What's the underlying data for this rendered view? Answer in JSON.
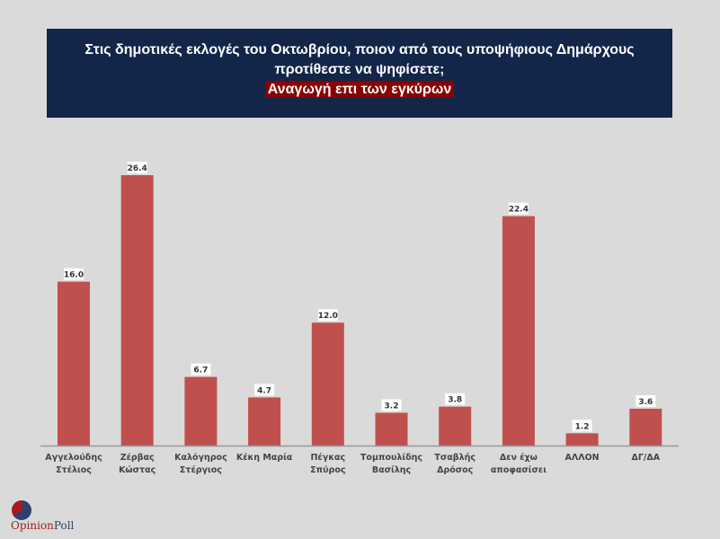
{
  "chart_data": {
    "type": "bar",
    "title": "Στις δημοτικές εκλογές του Οκτωβρίου, ποιον από τους υποψήφιους Δημάρχους προτίθεστε να ψηφίσετε;",
    "subtitle": "Αναγωγή επι των εγκύρων",
    "categories": [
      "Αγγελούδης Στέλιος",
      "Ζέρβας Κώστας",
      "Καλόγηρος Στέργιος",
      "Κέκη Μαρία",
      "Πέγκας Σπύρος",
      "Τομπουλίδης Βασίλης",
      "Τσαβλής Δρόσος",
      "Δεν έχω αποφασίσει",
      "ΑΛΛΟΝ",
      "ΔΓ/ΔΑ"
    ],
    "values": [
      16.0,
      26.4,
      6.7,
      4.7,
      12.0,
      3.2,
      3.8,
      22.4,
      1.2,
      3.6
    ],
    "data_labels": [
      "16.0",
      "26.4",
      "6.7",
      "4.7",
      "12.0",
      "3.2",
      "3.8",
      "22.4",
      "1.2",
      "3.6"
    ],
    "ylim": [
      0,
      26.4
    ],
    "grid": false,
    "bar_color": "#c0504d"
  },
  "logo": {
    "part1": "Opinion",
    "part2": "Poll"
  }
}
